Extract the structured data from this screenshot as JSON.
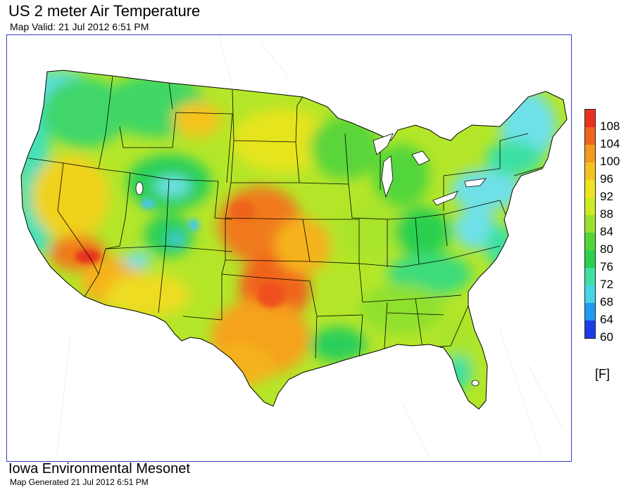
{
  "header": {
    "title": "US 2 meter Air Temperature",
    "subtitle": "Map Valid: 21 Jul 2012 6:51 PM"
  },
  "legend": {
    "unit": "[F]",
    "stops": [
      {
        "label": "108",
        "color": "#e8321e"
      },
      {
        "label": "104",
        "color": "#f0641e"
      },
      {
        "label": "100",
        "color": "#f39a1f"
      },
      {
        "label": "96",
        "color": "#f5c31f"
      },
      {
        "label": "92",
        "color": "#eee41f"
      },
      {
        "label": "88",
        "color": "#cdea25"
      },
      {
        "label": "84",
        "color": "#98e32d"
      },
      {
        "label": "80",
        "color": "#52d63a"
      },
      {
        "label": "76",
        "color": "#2bd04e"
      },
      {
        "label": "72",
        "color": "#3de0a2"
      },
      {
        "label": "68",
        "color": "#45d6e6"
      },
      {
        "label": "64",
        "color": "#1d9cf0"
      },
      {
        "label": "60",
        "color": "#1c3ce8"
      }
    ]
  },
  "footer": {
    "organization": "Iowa Environmental Mesonet",
    "generated": "Map Generated 21 Jul 2012 6:51 PM"
  }
}
